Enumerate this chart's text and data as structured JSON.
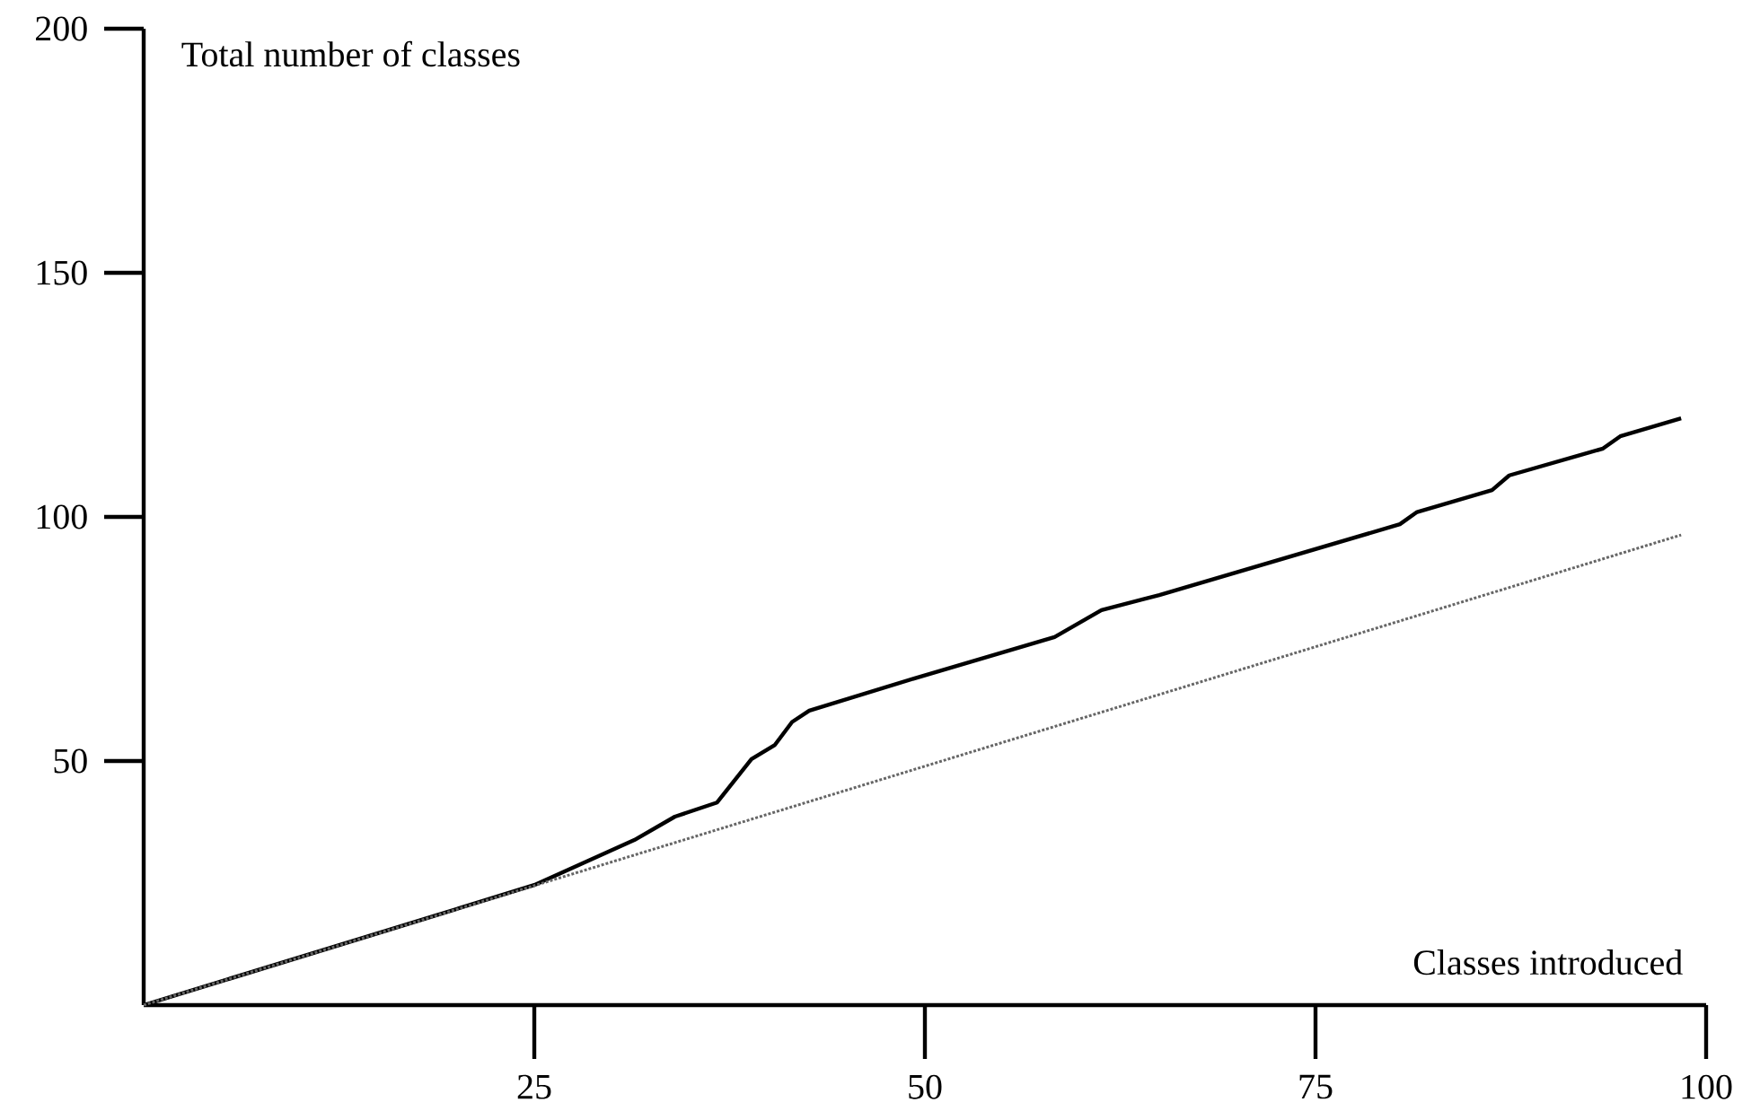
{
  "chart_data": {
    "type": "line",
    "xlabel": "Classes introduced",
    "ylabel": "Total number of classes",
    "xlim": [
      0,
      100
    ],
    "ylim": [
      0,
      200
    ],
    "xticks": [
      25,
      50,
      75,
      100
    ],
    "yticks": [
      50,
      100,
      150,
      200
    ],
    "marker": "none",
    "series": [
      {
        "color": "#000000",
        "line_style": "solid",
        "x": [
          0,
          15.7,
          25,
          31.4,
          34,
          36.7,
          38.9,
          40.4,
          41.5,
          42.6,
          49.3,
          58.3,
          61.3,
          65,
          80.4,
          81.5,
          86.3,
          87.4,
          93.4,
          94.5,
          98.4
        ],
        "values": [
          0,
          15.4,
          24.6,
          33.8,
          38.6,
          41.5,
          50.4,
          53.3,
          58,
          60.3,
          66.9,
          75.4,
          80.9,
          84,
          98.5,
          101,
          105.5,
          108.5,
          114,
          116.5,
          120.2
        ]
      },
      {
        "color": "#666666",
        "line_style": "dotted",
        "x": [
          0,
          98.4
        ],
        "values": [
          0,
          96.3
        ]
      }
    ]
  }
}
